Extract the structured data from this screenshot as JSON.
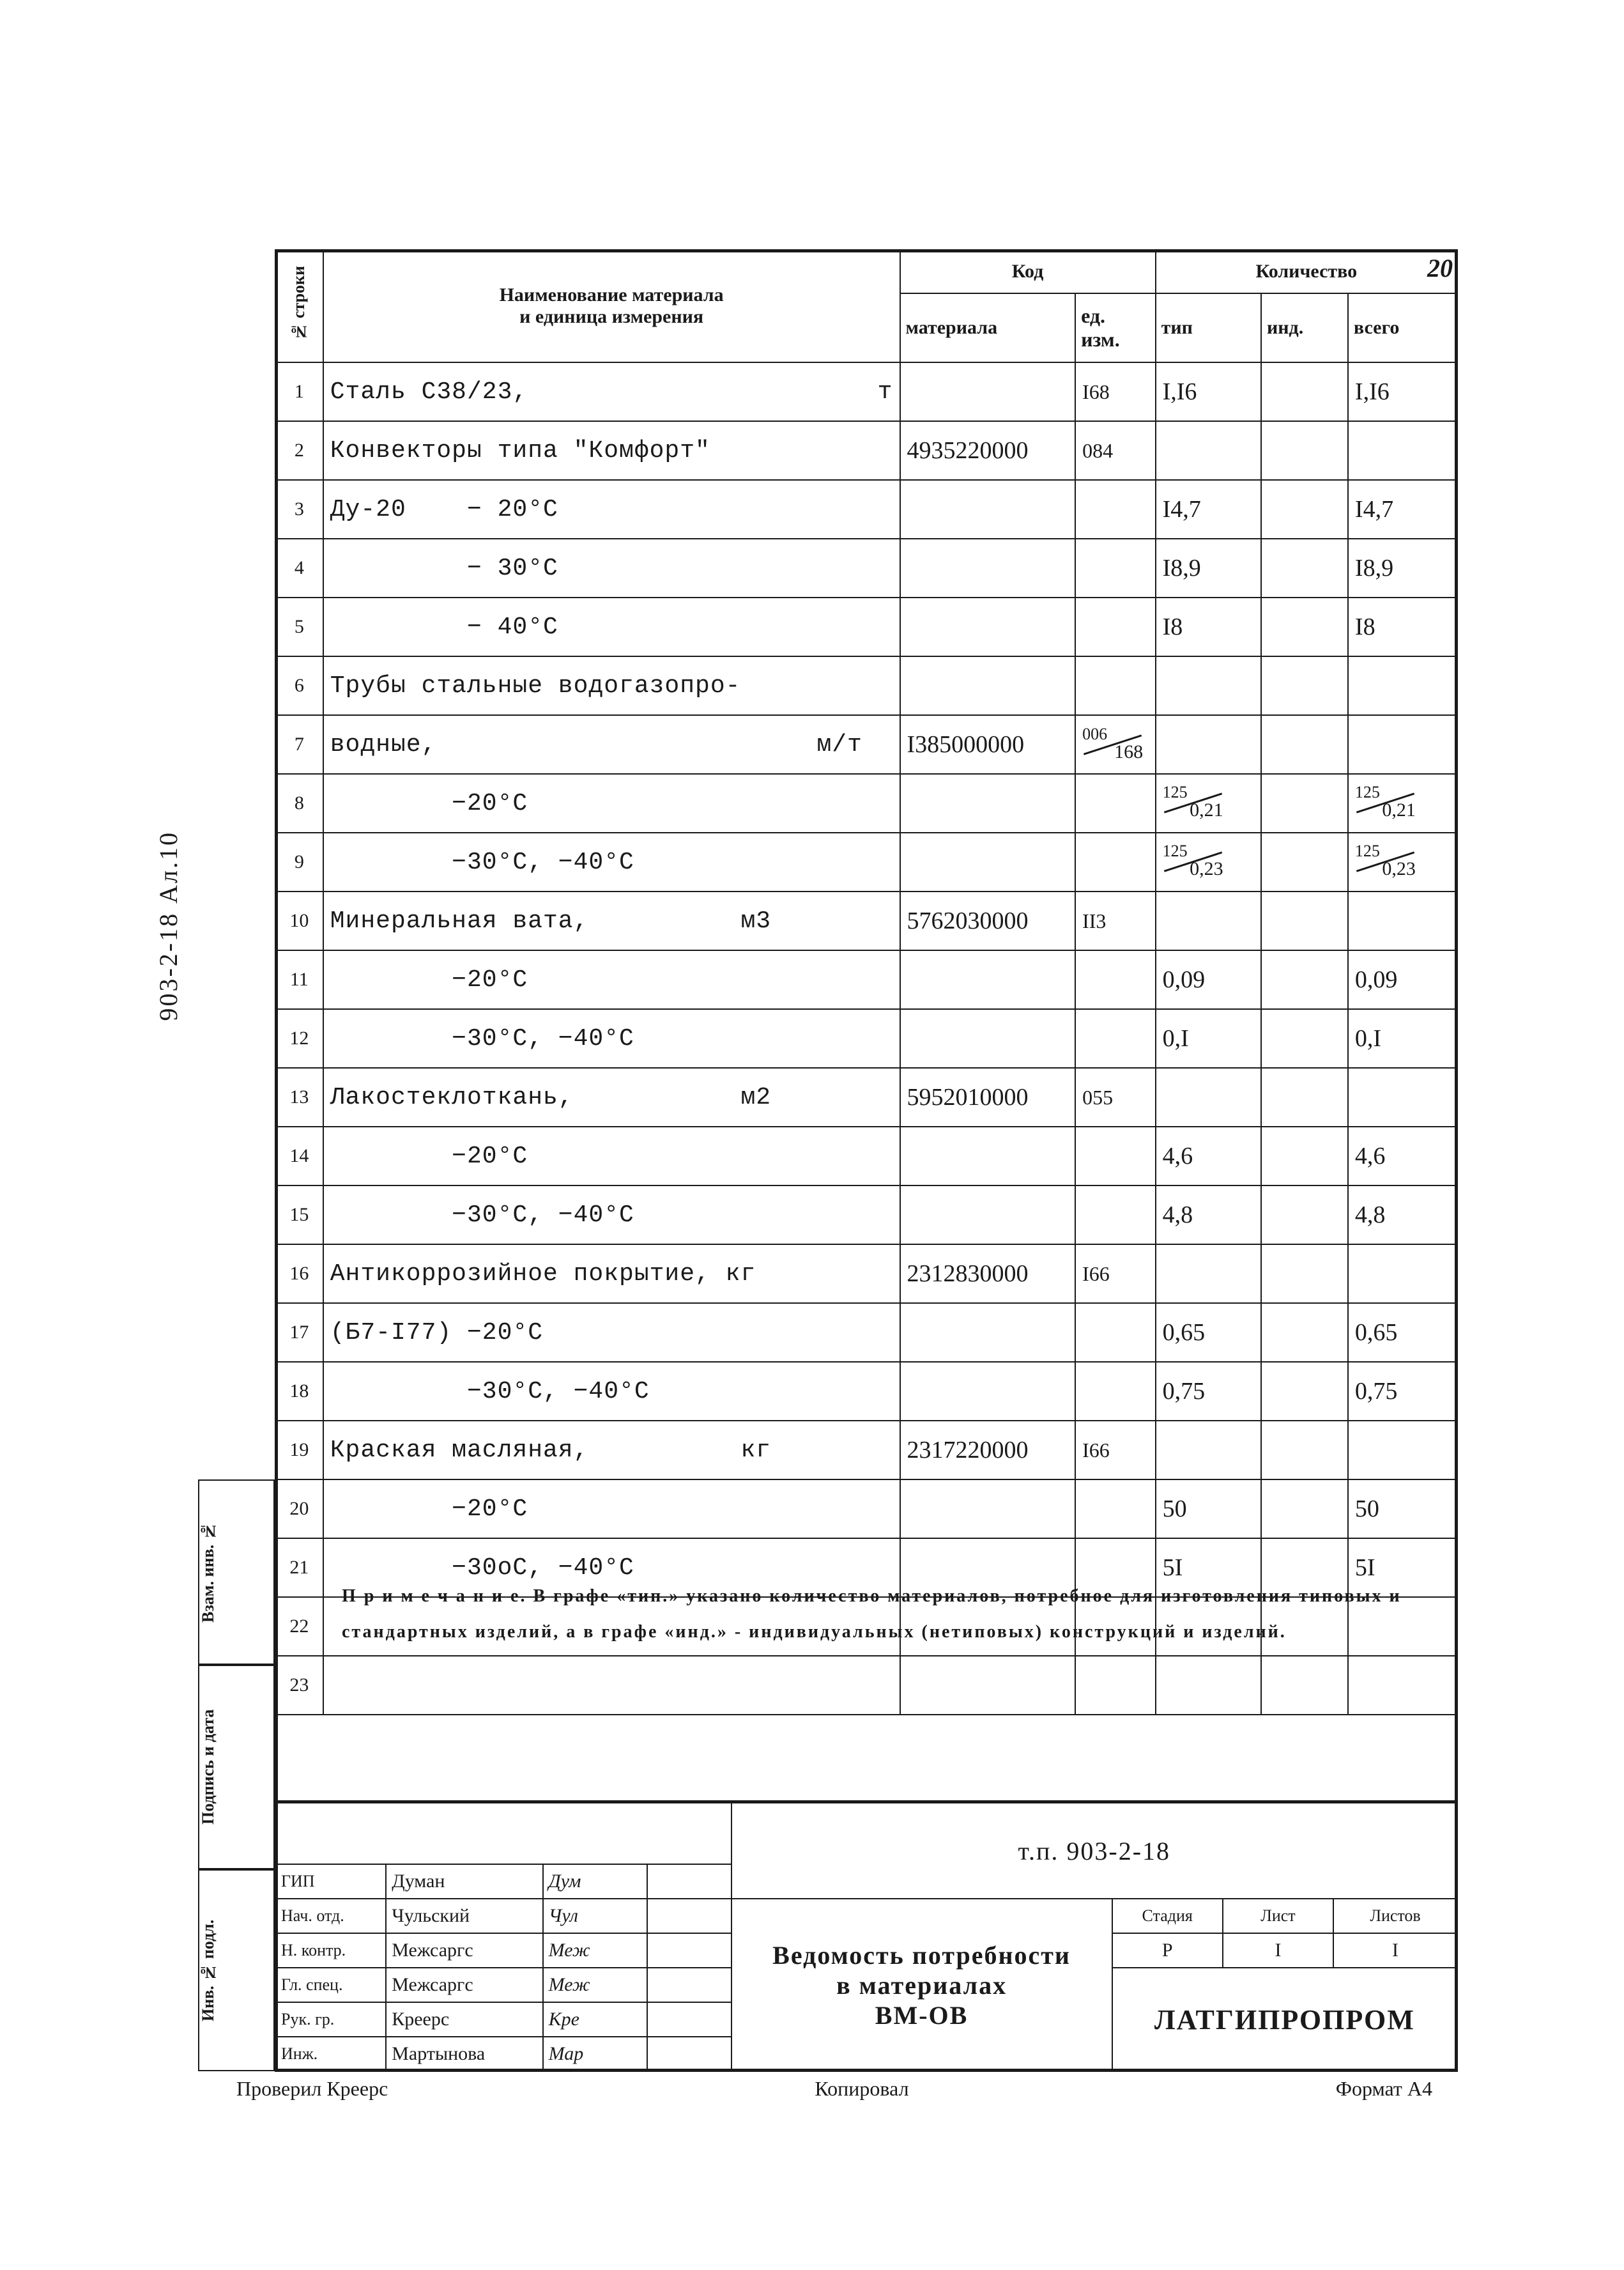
{
  "page_number": "20",
  "running_id": "903-2-18    Ал.10",
  "header": {
    "rownum": "№ строки",
    "name": "Наименование материала\nи единица измерения",
    "code": "Код",
    "mat": "материала",
    "unit": "ед.\nизм.",
    "qty": "Количество",
    "tip": "тип",
    "ind": "инд.",
    "total": "всего"
  },
  "rows": [
    {
      "n": "1",
      "name": "Сталь С38/23,                       т",
      "mat": "",
      "unit": "I68",
      "tip": "I,I6",
      "ind": "",
      "total": "I,I6"
    },
    {
      "n": "2",
      "name": "Конвекторы типа \"Комфорт\"",
      "mat": "4935220000",
      "unit": "084",
      "tip": "",
      "ind": "",
      "total": ""
    },
    {
      "n": "3",
      "name": "Ду-20    − 20°С",
      "mat": "",
      "unit": "",
      "tip": "I4,7",
      "ind": "",
      "total": "I4,7"
    },
    {
      "n": "4",
      "name": "         − 30°С",
      "mat": "",
      "unit": "",
      "tip": "I8,9",
      "ind": "",
      "total": "I8,9"
    },
    {
      "n": "5",
      "name": "         − 40°С",
      "mat": "",
      "unit": "",
      "tip": "I8",
      "ind": "",
      "total": "I8"
    },
    {
      "n": "6",
      "name": "Трубы стальные водогазопро-",
      "mat": "",
      "unit": "",
      "tip": "",
      "ind": "",
      "total": ""
    },
    {
      "n": "7",
      "name": "водные,                         м/т",
      "mat": "I385000000",
      "unit_frac": {
        "top": "006",
        "bot": "168"
      },
      "tip": "",
      "ind": "",
      "total": ""
    },
    {
      "n": "8",
      "name": "        −20°С",
      "mat": "",
      "unit": "",
      "tip_frac": {
        "top": "125",
        "bot": "0,21"
      },
      "ind": "",
      "total_frac": {
        "top": "125",
        "bot": "0,21"
      }
    },
    {
      "n": "9",
      "name": "        −30°С, −40°С",
      "mat": "",
      "unit": "",
      "tip_frac": {
        "top": "125",
        "bot": "0,23"
      },
      "ind": "",
      "total_frac": {
        "top": "125",
        "bot": "0,23"
      }
    },
    {
      "n": "10",
      "name": "Минеральная вата,          м3",
      "mat": "5762030000",
      "unit": "II3",
      "tip": "",
      "ind": "",
      "total": ""
    },
    {
      "n": "11",
      "name": "        −20°С",
      "mat": "",
      "unit": "",
      "tip": "0,09",
      "ind": "",
      "total": "0,09"
    },
    {
      "n": "12",
      "name": "        −30°С, −40°С",
      "mat": "",
      "unit": "",
      "tip": "0,I",
      "ind": "",
      "total": "0,I"
    },
    {
      "n": "13",
      "name": "Лакостеклоткань,           м2",
      "mat": "5952010000",
      "unit": "055",
      "tip": "",
      "ind": "",
      "total": ""
    },
    {
      "n": "14",
      "name": "        −20°С",
      "mat": "",
      "unit": "",
      "tip": "4,6",
      "ind": "",
      "total": "4,6"
    },
    {
      "n": "15",
      "name": "        −30°С, −40°С",
      "mat": "",
      "unit": "",
      "tip": "4,8",
      "ind": "",
      "total": "4,8"
    },
    {
      "n": "16",
      "name": "Антикоррозийное покрытие, кг",
      "mat": "2312830000",
      "unit": "I66",
      "tip": "",
      "ind": "",
      "total": ""
    },
    {
      "n": "17",
      "name": "(Б7-I77) −20°С",
      "mat": "",
      "unit": "",
      "tip": "0,65",
      "ind": "",
      "total": "0,65"
    },
    {
      "n": "18",
      "name": "         −30°С, −40°С",
      "mat": "",
      "unit": "",
      "tip": "0,75",
      "ind": "",
      "total": "0,75"
    },
    {
      "n": "19",
      "name": "Краская масляная,          кг",
      "mat": "2317220000",
      "unit": "I66",
      "tip": "",
      "ind": "",
      "total": ""
    },
    {
      "n": "20",
      "name": "        −20°С",
      "mat": "",
      "unit": "",
      "tip": "50",
      "ind": "",
      "total": "50"
    },
    {
      "n": "21",
      "name": "        −30оС, −40°С",
      "mat": "",
      "unit": "",
      "tip": "5I",
      "ind": "",
      "total": "5I"
    },
    {
      "n": "22",
      "name": "",
      "mat": "",
      "unit": "",
      "tip": "",
      "ind": "",
      "total": ""
    },
    {
      "n": "23",
      "name": "",
      "mat": "",
      "unit": "",
      "tip": "",
      "ind": "",
      "total": ""
    }
  ],
  "note": "П р и м е ч а н и е.  В графе «тип.» указано количество материалов, потребное для изготовления типовых и стандартных изделий, а в графе «инд.» - индивидуальных (нетиповых) конструкций и изделий.",
  "title_block": {
    "doc_num": "т.п. 903-2-18",
    "title1": "Ведомость потребности",
    "title2": "в материалах",
    "title3": "ВМ-ОВ",
    "stage_h": "Стадия",
    "sheet_h": "Лист",
    "sheets_h": "Листов",
    "stage": "Р",
    "sheet": "I",
    "sheets": "I",
    "org": "ЛАТГИПРОПРОМ",
    "roles": [
      {
        "r": "ГИП",
        "n": "Думан",
        "s": "Дум"
      },
      {
        "r": "Нач. отд.",
        "n": "Чульский",
        "s": "Чул"
      },
      {
        "r": "Н. контр.",
        "n": "Межсаргс",
        "s": "Меж"
      },
      {
        "r": "Гл. спец.",
        "n": "Межсаргс",
        "s": "Меж"
      },
      {
        "r": "Рук. гр.",
        "n": "Креерс",
        "s": "Кре"
      },
      {
        "r": "Инж.",
        "n": "Мартынова",
        "s": "Мар"
      }
    ],
    "checked": "Проверил Креерс",
    "copied": "Копировал",
    "format": "Формат А4"
  },
  "side": {
    "a": "Взам. инв. №",
    "b": "Подпись и дата",
    "c": "Инв. № подл."
  }
}
